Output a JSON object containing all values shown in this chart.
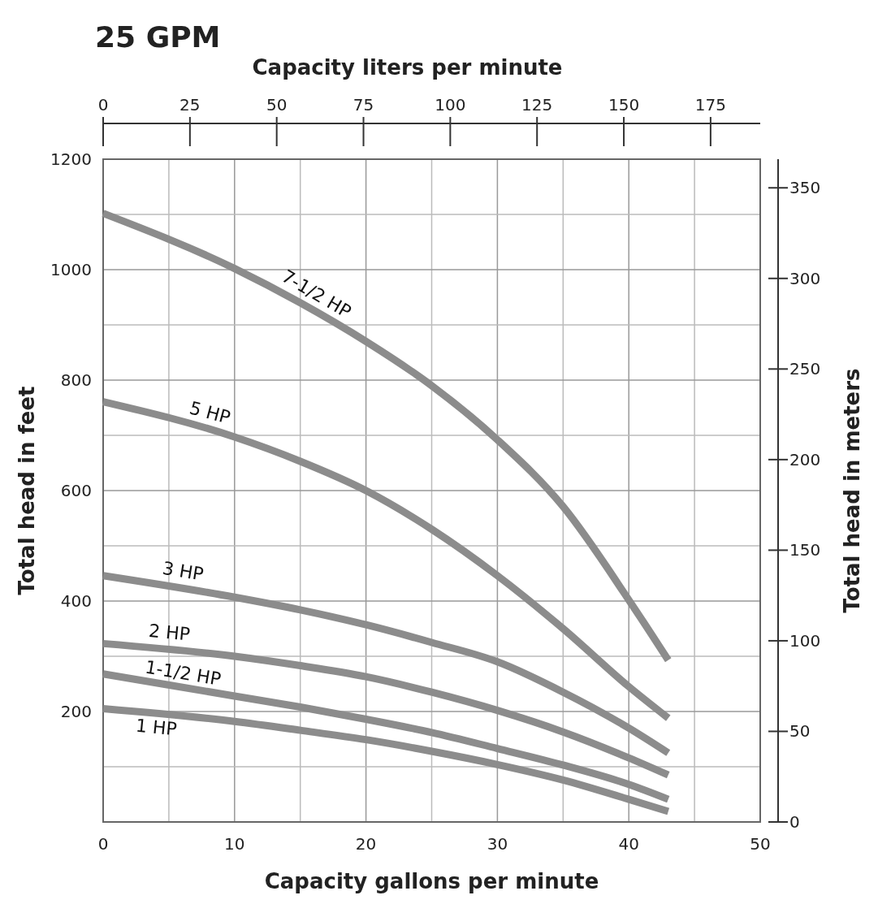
{
  "chart_data": {
    "type": "line",
    "title": "25 GPM",
    "xlabel": "Capacity gallons per minute",
    "x2label": "Capacity liters per minute",
    "ylabel": "Total head in feet",
    "y2label": "Total head in meters",
    "xlim": [
      0,
      50
    ],
    "xticks": [
      0,
      10,
      20,
      30,
      40,
      50
    ],
    "ylim": [
      0,
      1200
    ],
    "yticks": [
      {
        "value": 0,
        "label": null
      },
      200,
      400,
      600,
      800,
      1000,
      1200
    ],
    "x2lim": [
      0,
      189.3
    ],
    "x2ticks": [
      0,
      25,
      50,
      75,
      100,
      125,
      150,
      175
    ],
    "y2lim": [
      0,
      365.8
    ],
    "y2ticks": [
      0,
      50,
      100,
      150,
      200,
      250,
      300,
      350
    ],
    "grid": true,
    "legend": false,
    "marker": "none",
    "line_style": "solid",
    "x": [
      0,
      10,
      15,
      20,
      25,
      30,
      35,
      40,
      43
    ],
    "series": [
      {
        "name": "7-1/2 HP",
        "color": "#8c8c8c",
        "values": [
          1102,
          1002,
          940,
          870,
          790,
          692,
          571,
          402,
          293
        ]
      },
      {
        "name": "5 HP",
        "color": "#8c8c8c",
        "values": [
          761,
          697,
          653,
          600,
          530,
          446,
          350,
          245,
          188
        ]
      },
      {
        "name": "3 HP",
        "color": "#8c8c8c",
        "values": [
          446,
          407,
          384,
          357,
          325,
          290,
          235,
          170,
          125
        ]
      },
      {
        "name": "2 HP",
        "color": "#8c8c8c",
        "values": [
          323,
          300,
          283,
          263,
          235,
          202,
          163,
          116,
          85
        ]
      },
      {
        "name": "1-1/2 HP",
        "color": "#8c8c8c",
        "values": [
          268,
          228,
          208,
          186,
          162,
          133,
          103,
          68,
          41
        ]
      },
      {
        "name": "1 HP",
        "color": "#8c8c8c",
        "values": [
          205,
          182,
          166,
          149,
          128,
          104,
          76,
          41,
          19
        ]
      }
    ]
  }
}
